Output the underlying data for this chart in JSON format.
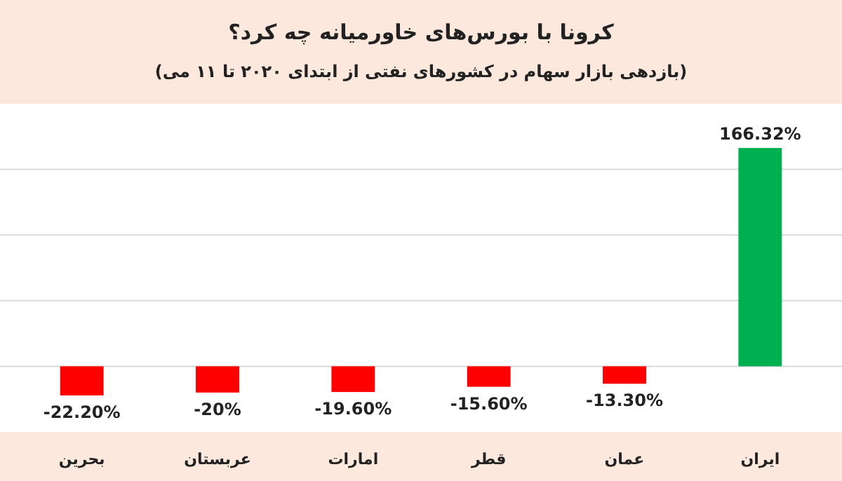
{
  "chart_data": {
    "type": "bar",
    "title": "کرونا با بورس‌های خاورمیانه چه کرد؟",
    "subtitle": "(بازدهی بازار سهام در کشورهای نفتی از ابتدای ۲۰۲۰ تا ۱۱ می)",
    "categories": [
      "بحرین",
      "عربستان",
      "امارات",
      "قطر",
      "عمان",
      "ایران"
    ],
    "values": [
      -22.2,
      -20,
      -19.6,
      -15.6,
      -13.3,
      166.32
    ],
    "colors": [
      "#ff0000",
      "#ff0000",
      "#ff0000",
      "#ff0000",
      "#ff0000",
      "#00b050"
    ],
    "value_labels": [
      "-22.20%",
      "-20%",
      "-19.60%",
      "-15.60%",
      "-13.30%",
      "166.32%"
    ],
    "ylim": [
      -50,
      200
    ],
    "yticks": [
      {
        "value": 0,
        "label": null
      },
      {
        "value": 50,
        "label": null
      },
      {
        "value": 100,
        "label": null
      },
      {
        "value": 150,
        "label": null
      }
    ],
    "grid": "y",
    "tick_labels": "x"
  }
}
